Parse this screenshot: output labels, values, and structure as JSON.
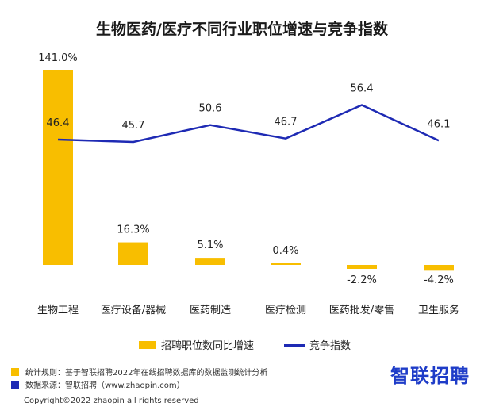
{
  "title": "生物医药/医疗不同行业职位增速与竞争指数",
  "chart_data": {
    "type": "bar",
    "categories": [
      "生物工程",
      "医疗设备/器械",
      "医药制造",
      "医疗检测",
      "医药批发/零售",
      "卫生服务"
    ],
    "series": [
      {
        "name": "招聘职位数同比增速",
        "type": "bar",
        "values": [
          141.0,
          16.3,
          5.1,
          0.4,
          -2.2,
          -4.2
        ],
        "labels": [
          "141.0%",
          "16.3%",
          "5.1%",
          "0.4%",
          "-2.2%",
          "-4.2%"
        ],
        "color": "#F8BE00"
      },
      {
        "name": "竞争指数",
        "type": "line",
        "values": [
          46.4,
          45.7,
          50.6,
          46.7,
          56.4,
          46.1
        ],
        "labels": [
          "46.4",
          "45.7",
          "50.6",
          "46.7",
          "56.4",
          "46.1"
        ],
        "color": "#1E2AB4"
      }
    ],
    "grid": false,
    "legend_position": "bottom"
  },
  "legend": {
    "bar_label": "招聘职位数同比增速",
    "line_label": "竞争指数"
  },
  "notes": [
    {
      "label": "统计规则：基于智联招聘2022年在线招聘数据库的数据监测统计分析",
      "color": "#F8BE00"
    },
    {
      "label": "数据来源：智联招聘（www.zhaopin.com）",
      "color": "#1E2AB4"
    }
  ],
  "logo_text": "智联招聘",
  "copyright": "Copyright©2022 zhaopin all rights reserved"
}
